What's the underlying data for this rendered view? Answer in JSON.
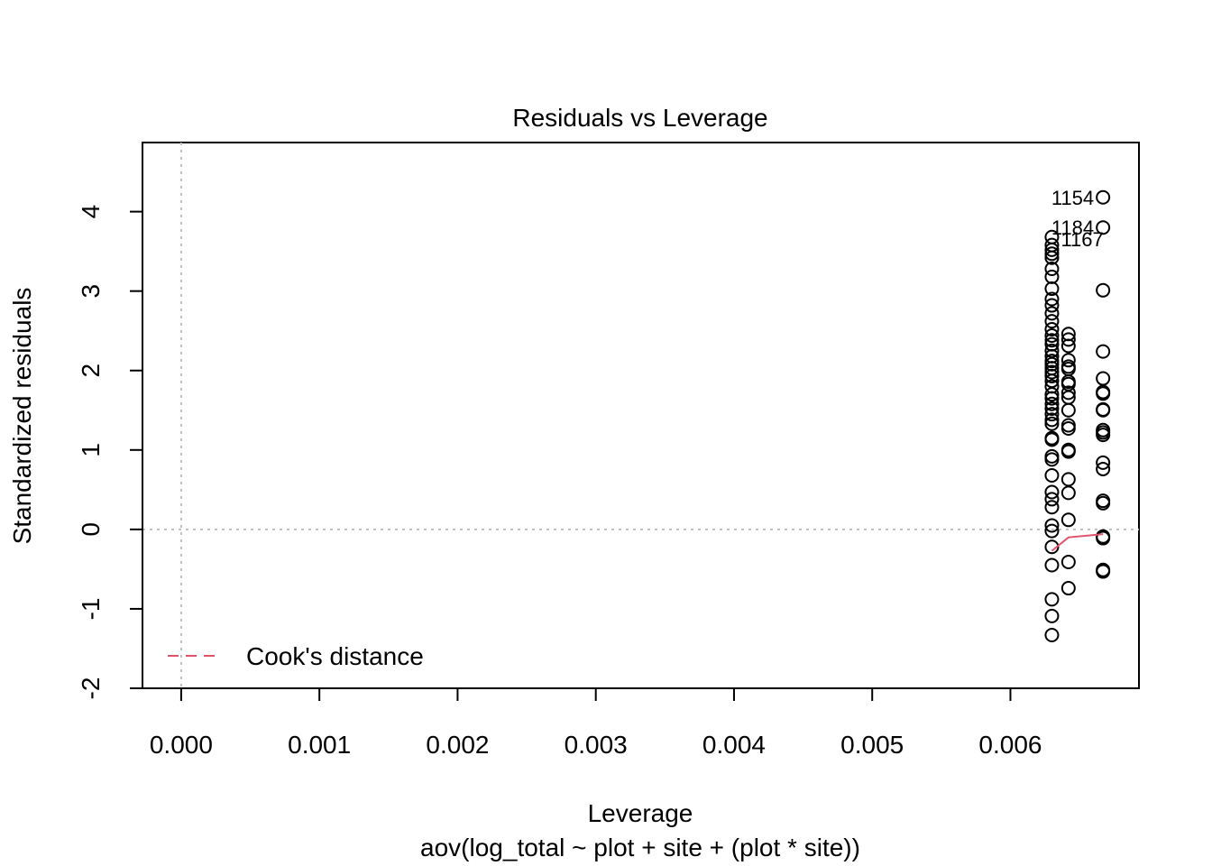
{
  "chart_data": {
    "type": "scatter",
    "title": "Residuals vs Leverage",
    "xlabel": "Leverage",
    "subtitle": "aov(log_total ~ plot + site + (plot * site))",
    "ylabel": "Standardized residuals",
    "xlim": [
      -0.00028,
      0.00693
    ],
    "ylim": [
      -2.0,
      4.87
    ],
    "x_ticks": [
      {
        "value": 0.0,
        "label": "0.000"
      },
      {
        "value": 0.001,
        "label": "0.001"
      },
      {
        "value": 0.002,
        "label": "0.002"
      },
      {
        "value": 0.003,
        "label": "0.003"
      },
      {
        "value": 0.004,
        "label": "0.004"
      },
      {
        "value": 0.005,
        "label": "0.005"
      },
      {
        "value": 0.006,
        "label": "0.006"
      }
    ],
    "y_ticks": [
      {
        "value": -2,
        "label": "-2"
      },
      {
        "value": -1,
        "label": "-1"
      },
      {
        "value": 0,
        "label": "0"
      },
      {
        "value": 1,
        "label": "1"
      },
      {
        "value": 2,
        "label": "2"
      },
      {
        "value": 3,
        "label": "3"
      },
      {
        "value": 4,
        "label": "4"
      }
    ],
    "reference_lines": {
      "x": 0,
      "y": 0,
      "style": "dotted",
      "color": "#bebebe"
    },
    "series": [
      {
        "leverage": 0.0063,
        "residuals": [
          -1.33,
          -1.09,
          -0.88,
          -0.45,
          -0.22,
          -0.02,
          0.05,
          0.28,
          0.38,
          0.47,
          0.68,
          0.88,
          0.92,
          1.13,
          1.15,
          1.33,
          1.38,
          1.45,
          1.52,
          1.58,
          1.65,
          1.7,
          1.8,
          1.87,
          1.93,
          1.98,
          2.03,
          2.08,
          2.12,
          2.18,
          2.25,
          2.33,
          2.38,
          2.44,
          2.52,
          2.62,
          2.72,
          2.82,
          2.9,
          3.03,
          3.18,
          3.28,
          3.42,
          3.47,
          3.52,
          3.58,
          3.68
        ]
      },
      {
        "leverage": 0.00642,
        "residuals": [
          -0.74,
          -0.41,
          0.12,
          0.46,
          0.63,
          0.98,
          1.0,
          1.27,
          1.31,
          1.5,
          1.66,
          1.72,
          1.83,
          1.86,
          2.02,
          2.05,
          2.13,
          2.31,
          2.39,
          2.46
        ]
      },
      {
        "leverage": 0.00667,
        "residuals": [
          -0.53,
          -0.51,
          -0.11,
          -0.09,
          0.33,
          0.36,
          0.76,
          0.84,
          1.19,
          1.22,
          1.25,
          1.5,
          1.51,
          1.71,
          1.73,
          1.9,
          2.24,
          3.01,
          3.8,
          4.18
        ]
      }
    ],
    "point_labels": [
      {
        "label": "1154",
        "x": 0.00667,
        "y": 4.18
      },
      {
        "label": "1184",
        "x": 0.00667,
        "y": 3.8
      },
      {
        "label": "1167",
        "x": 0.0063,
        "y": 3.68
      }
    ],
    "smoother": {
      "color": "#DF536B",
      "points": [
        [
          0.0063,
          -0.27
        ],
        [
          0.00642,
          -0.1
        ],
        [
          0.00667,
          -0.06
        ]
      ]
    },
    "legend": {
      "position": "bottom-left",
      "label": "Cook's distance",
      "color": "#DF536B",
      "style": "dashed"
    }
  }
}
